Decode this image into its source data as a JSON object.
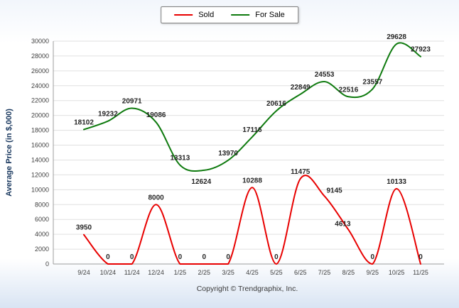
{
  "chart_data": {
    "type": "line",
    "title": "",
    "xlabel": "",
    "ylabel": "Average Price (in $,000)",
    "ylim": [
      0,
      30000
    ],
    "ytick_step": 2000,
    "grid": true,
    "legend_position": "top-center",
    "categories": [
      "9/24",
      "10/24",
      "11/24",
      "12/24",
      "1/25",
      "2/25",
      "3/25",
      "4/25",
      "5/25",
      "6/25",
      "7/25",
      "8/25",
      "9/25",
      "10/25",
      "11/25"
    ],
    "series": [
      {
        "name": "Sold",
        "color": "#e80000",
        "clamp_baseline": true,
        "values": [
          3950,
          0,
          0,
          8000,
          0,
          0,
          0,
          10288,
          0,
          11475,
          9145,
          4613,
          0,
          10133,
          0
        ]
      },
      {
        "name": "For Sale",
        "color": "#0e7a0e",
        "clamp_baseline": false,
        "values": [
          18102,
          19232,
          20971,
          19086,
          13313,
          12624,
          13970,
          17116,
          20616,
          22849,
          24553,
          22516,
          23557,
          29628,
          27923
        ]
      }
    ],
    "label_offsets": {
      "Sold": {
        "10": [
          14,
          2
        ],
        "11": [
          -8,
          2
        ]
      },
      "For Sale": {
        "5": [
          -4,
          26
        ]
      }
    }
  },
  "footer": {
    "copyright": "Copyright © Trendgraphix, Inc."
  }
}
